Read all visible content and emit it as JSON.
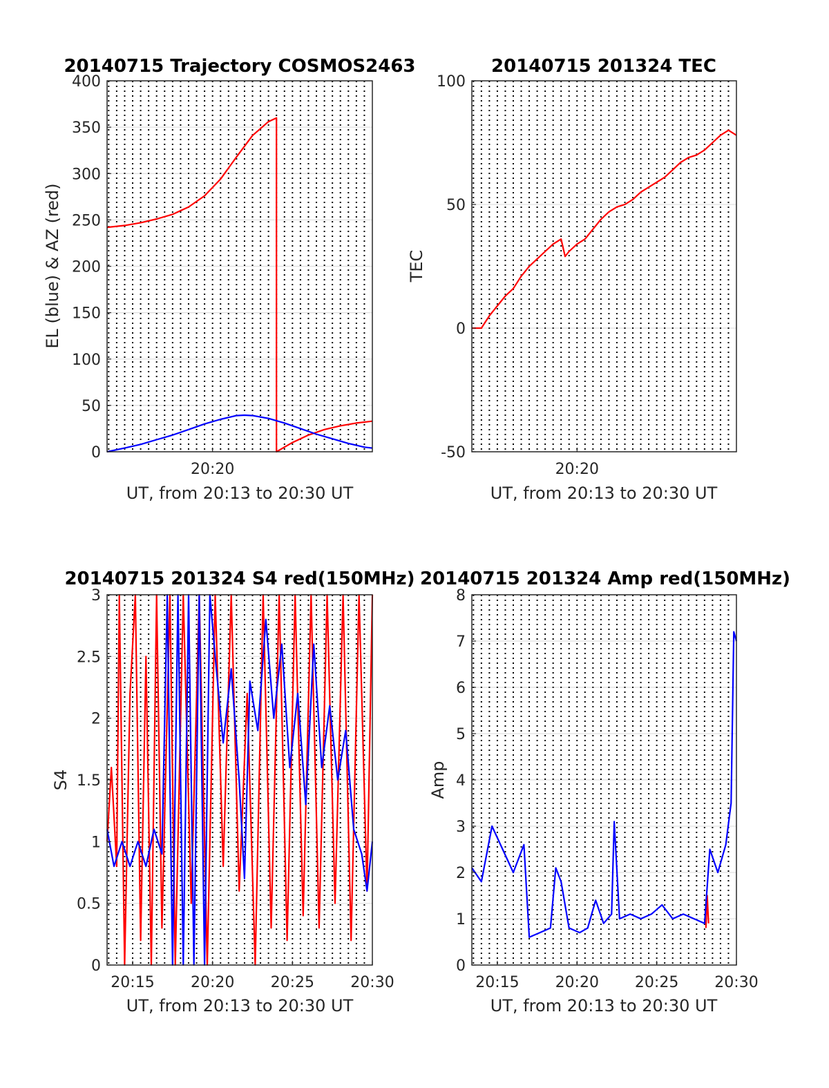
{
  "chart_data": [
    {
      "type": "line",
      "title": "20140715 Trajectory COSMOS2463",
      "xlabel": "UT, from 20:13 to 20:30 UT",
      "ylabel": "EL (blue) & AZ (red)",
      "xlim": [
        "20:13:24",
        "20:30:00"
      ],
      "ylim": [
        0,
        400
      ],
      "yticks": [
        "0",
        "50",
        "100",
        "150",
        "200",
        "250",
        "300",
        "350",
        "400"
      ],
      "xticks": [
        "20:20"
      ],
      "grid": true,
      "series": [
        {
          "color": "#ff0000",
          "points": [
            [
              "20:13:24",
              242
            ],
            [
              "20:14:30",
              244
            ],
            [
              "20:15:30",
              247
            ],
            [
              "20:16:30",
              251
            ],
            [
              "20:17:30",
              256
            ],
            [
              "20:18:30",
              264
            ],
            [
              "20:19:30",
              276
            ],
            [
              "20:20:30",
              294
            ],
            [
              "20:21:30",
              318
            ],
            [
              "20:22:30",
              341
            ],
            [
              "20:23:30",
              356
            ],
            [
              "20:24:00",
              360
            ],
            [
              "20:24:00",
              0
            ],
            [
              "20:25:00",
              10
            ],
            [
              "20:26:00",
              18
            ],
            [
              "20:27:00",
              24
            ],
            [
              "20:28:00",
              28
            ],
            [
              "20:29:00",
              31
            ],
            [
              "20:30:00",
              33
            ]
          ]
        },
        {
          "color": "#0000ff",
          "points": [
            [
              "20:13:24",
              0
            ],
            [
              "20:14:30",
              4
            ],
            [
              "20:15:30",
              8
            ],
            [
              "20:16:30",
              13
            ],
            [
              "20:17:30",
              18
            ],
            [
              "20:18:30",
              24
            ],
            [
              "20:19:30",
              30
            ],
            [
              "20:20:30",
              35
            ],
            [
              "20:21:30",
              39
            ],
            [
              "20:22:00",
              39.5
            ],
            [
              "20:22:30",
              39
            ],
            [
              "20:23:30",
              36
            ],
            [
              "20:24:30",
              31
            ],
            [
              "20:25:30",
              25
            ],
            [
              "20:26:30",
              19
            ],
            [
              "20:27:30",
              14
            ],
            [
              "20:28:30",
              9
            ],
            [
              "20:29:30",
              5
            ],
            [
              "20:30:00",
              4
            ]
          ]
        }
      ]
    },
    {
      "type": "line",
      "title": "20140715 201324 TEC",
      "xlabel": "UT, from 20:13 to 20:30 UT",
      "ylabel": "TEC",
      "xlim": [
        "20:13:24",
        "20:30:00"
      ],
      "ylim": [
        -50,
        100
      ],
      "yticks": [
        "-50",
        "0",
        "50",
        "100"
      ],
      "xticks": [
        "20:20"
      ],
      "grid": true,
      "series": [
        {
          "color": "#ff0000",
          "points": [
            [
              "20:13:24",
              0
            ],
            [
              "20:14:00",
              0
            ],
            [
              "20:14:30",
              5
            ],
            [
              "20:15:00",
              9
            ],
            [
              "20:15:30",
              13
            ],
            [
              "20:16:00",
              16
            ],
            [
              "20:16:30",
              21
            ],
            [
              "20:17:00",
              25
            ],
            [
              "20:17:30",
              28
            ],
            [
              "20:18:00",
              31
            ],
            [
              "20:18:30",
              34
            ],
            [
              "20:19:00",
              36
            ],
            [
              "20:19:15",
              29
            ],
            [
              "20:19:30",
              31
            ],
            [
              "20:20:00",
              34
            ],
            [
              "20:20:30",
              36
            ],
            [
              "20:21:00",
              40
            ],
            [
              "20:21:30",
              44
            ],
            [
              "20:22:00",
              47
            ],
            [
              "20:22:30",
              49
            ],
            [
              "20:23:00",
              50
            ],
            [
              "20:23:30",
              52
            ],
            [
              "20:24:00",
              55
            ],
            [
              "20:24:30",
              57
            ],
            [
              "20:25:00",
              59
            ],
            [
              "20:25:30",
              61
            ],
            [
              "20:26:00",
              64
            ],
            [
              "20:26:30",
              67
            ],
            [
              "20:27:00",
              69
            ],
            [
              "20:27:30",
              70
            ],
            [
              "20:28:00",
              72
            ],
            [
              "20:28:30",
              75
            ],
            [
              "20:29:00",
              78
            ],
            [
              "20:29:30",
              80
            ],
            [
              "20:30:00",
              78
            ]
          ]
        }
      ]
    },
    {
      "type": "line",
      "title": "20140715 201324 S4 red(150MHz)",
      "xlabel": "UT, from 20:13 to 20:30 UT",
      "ylabel": "S4",
      "xlim": [
        "20:13:24",
        "20:30:00"
      ],
      "ylim": [
        0,
        3
      ],
      "yticks": [
        "0",
        "0.5",
        "1",
        "1.5",
        "2",
        "2.5",
        "3"
      ],
      "xticks": [
        "20:15",
        "20:20",
        "20:25",
        "20:30"
      ],
      "grid": true,
      "series": [
        {
          "color": "#ff0000",
          "points": [
            [
              "20:13:24",
              1.0
            ],
            [
              "20:13:40",
              1.6
            ],
            [
              "20:14:00",
              0.8
            ],
            [
              "20:14:10",
              3.0
            ],
            [
              "20:14:30",
              0.0
            ],
            [
              "20:14:50",
              2.2
            ],
            [
              "20:15:10",
              3.0
            ],
            [
              "20:15:30",
              0.2
            ],
            [
              "20:15:50",
              2.5
            ],
            [
              "20:16:10",
              0.0
            ],
            [
              "20:16:30",
              3.0
            ],
            [
              "20:16:50",
              0.3
            ],
            [
              "20:17:20",
              3.0
            ],
            [
              "20:17:40",
              0.0
            ],
            [
              "20:18:10",
              3.0
            ],
            [
              "20:18:40",
              0.5
            ],
            [
              "20:19:10",
              3.0
            ],
            [
              "20:19:40",
              0.0
            ],
            [
              "20:20:10",
              3.0
            ],
            [
              "20:20:40",
              0.8
            ],
            [
              "20:21:10",
              3.0
            ],
            [
              "20:21:40",
              0.6
            ],
            [
              "20:22:10",
              2.2
            ],
            [
              "20:22:40",
              0.0
            ],
            [
              "20:23:10",
              3.0
            ],
            [
              "20:23:40",
              0.3
            ],
            [
              "20:24:10",
              3.0
            ],
            [
              "20:24:40",
              0.2
            ],
            [
              "20:25:10",
              3.0
            ],
            [
              "20:25:40",
              0.4
            ],
            [
              "20:26:10",
              3.0
            ],
            [
              "20:26:40",
              0.3
            ],
            [
              "20:27:10",
              3.0
            ],
            [
              "20:27:40",
              0.5
            ],
            [
              "20:28:10",
              3.0
            ],
            [
              "20:28:40",
              0.2
            ],
            [
              "20:29:10",
              3.0
            ],
            [
              "20:29:40",
              0.6
            ],
            [
              "20:30:00",
              3.0
            ]
          ]
        },
        {
          "color": "#0000ff",
          "points": [
            [
              "20:13:24",
              1.1
            ],
            [
              "20:13:50",
              0.8
            ],
            [
              "20:14:20",
              1.0
            ],
            [
              "20:14:50",
              0.8
            ],
            [
              "20:15:20",
              1.0
            ],
            [
              "20:15:50",
              0.8
            ],
            [
              "20:16:20",
              1.1
            ],
            [
              "20:16:50",
              0.9
            ],
            [
              "20:17:10",
              3.0
            ],
            [
              "20:17:30",
              0.0
            ],
            [
              "20:17:50",
              3.0
            ],
            [
              "20:18:10",
              0.0
            ],
            [
              "20:18:30",
              3.0
            ],
            [
              "20:18:50",
              0.0
            ],
            [
              "20:19:10",
              3.0
            ],
            [
              "20:19:30",
              0.0
            ],
            [
              "20:19:50",
              3.0
            ],
            [
              "20:20:10",
              2.5
            ],
            [
              "20:20:40",
              1.8
            ],
            [
              "20:21:10",
              2.4
            ],
            [
              "20:21:40",
              1.5
            ],
            [
              "20:22:00",
              0.7
            ],
            [
              "20:22:20",
              2.3
            ],
            [
              "20:22:50",
              1.9
            ],
            [
              "20:23:20",
              2.8
            ],
            [
              "20:23:50",
              2.0
            ],
            [
              "20:24:20",
              2.6
            ],
            [
              "20:24:50",
              1.6
            ],
            [
              "20:25:20",
              2.2
            ],
            [
              "20:25:50",
              1.3
            ],
            [
              "20:26:20",
              2.6
            ],
            [
              "20:26:50",
              1.6
            ],
            [
              "20:27:20",
              2.1
            ],
            [
              "20:27:50",
              1.5
            ],
            [
              "20:28:20",
              1.9
            ],
            [
              "20:28:50",
              1.1
            ],
            [
              "20:29:20",
              0.9
            ],
            [
              "20:29:40",
              0.6
            ],
            [
              "20:30:00",
              1.0
            ]
          ]
        }
      ]
    },
    {
      "type": "line",
      "title": "20140715 201324 Amp red(150MHz)",
      "xlabel": "UT, from 20:13 to 20:30 UT",
      "ylabel": "Amp",
      "xlim": [
        "20:13:24",
        "20:30:00"
      ],
      "ylim": [
        0,
        8
      ],
      "yticks": [
        "0",
        "1",
        "2",
        "3",
        "4",
        "5",
        "6",
        "7",
        "8"
      ],
      "xticks": [
        "20:15",
        "20:20",
        "20:25",
        "20:30"
      ],
      "grid": true,
      "series": [
        {
          "color": "#ff0000",
          "points": [
            [
              "20:28:05",
              0.8
            ],
            [
              "20:28:10",
              1.5
            ],
            [
              "20:28:15",
              0.9
            ]
          ]
        },
        {
          "color": "#0000ff",
          "points": [
            [
              "20:13:24",
              2.1
            ],
            [
              "20:14:00",
              1.8
            ],
            [
              "20:14:40",
              3.0
            ],
            [
              "20:15:20",
              2.5
            ],
            [
              "20:16:00",
              2.0
            ],
            [
              "20:16:40",
              2.6
            ],
            [
              "20:17:00",
              0.6
            ],
            [
              "20:17:40",
              0.7
            ],
            [
              "20:18:20",
              0.8
            ],
            [
              "20:18:40",
              2.1
            ],
            [
              "20:19:00",
              1.8
            ],
            [
              "20:19:30",
              0.8
            ],
            [
              "20:20:10",
              0.7
            ],
            [
              "20:20:40",
              0.8
            ],
            [
              "20:21:10",
              1.4
            ],
            [
              "20:21:40",
              0.9
            ],
            [
              "20:22:10",
              1.1
            ],
            [
              "20:22:20",
              3.1
            ],
            [
              "20:22:40",
              1.0
            ],
            [
              "20:23:20",
              1.1
            ],
            [
              "20:24:00",
              1.0
            ],
            [
              "20:24:40",
              1.1
            ],
            [
              "20:25:20",
              1.3
            ],
            [
              "20:26:00",
              1.0
            ],
            [
              "20:26:40",
              1.1
            ],
            [
              "20:27:20",
              1.0
            ],
            [
              "20:28:00",
              0.9
            ],
            [
              "20:28:20",
              2.5
            ],
            [
              "20:28:50",
              2.0
            ],
            [
              "20:29:20",
              2.6
            ],
            [
              "20:29:40",
              3.5
            ],
            [
              "20:29:50",
              7.2
            ],
            [
              "20:30:00",
              7.0
            ]
          ]
        }
      ]
    }
  ]
}
